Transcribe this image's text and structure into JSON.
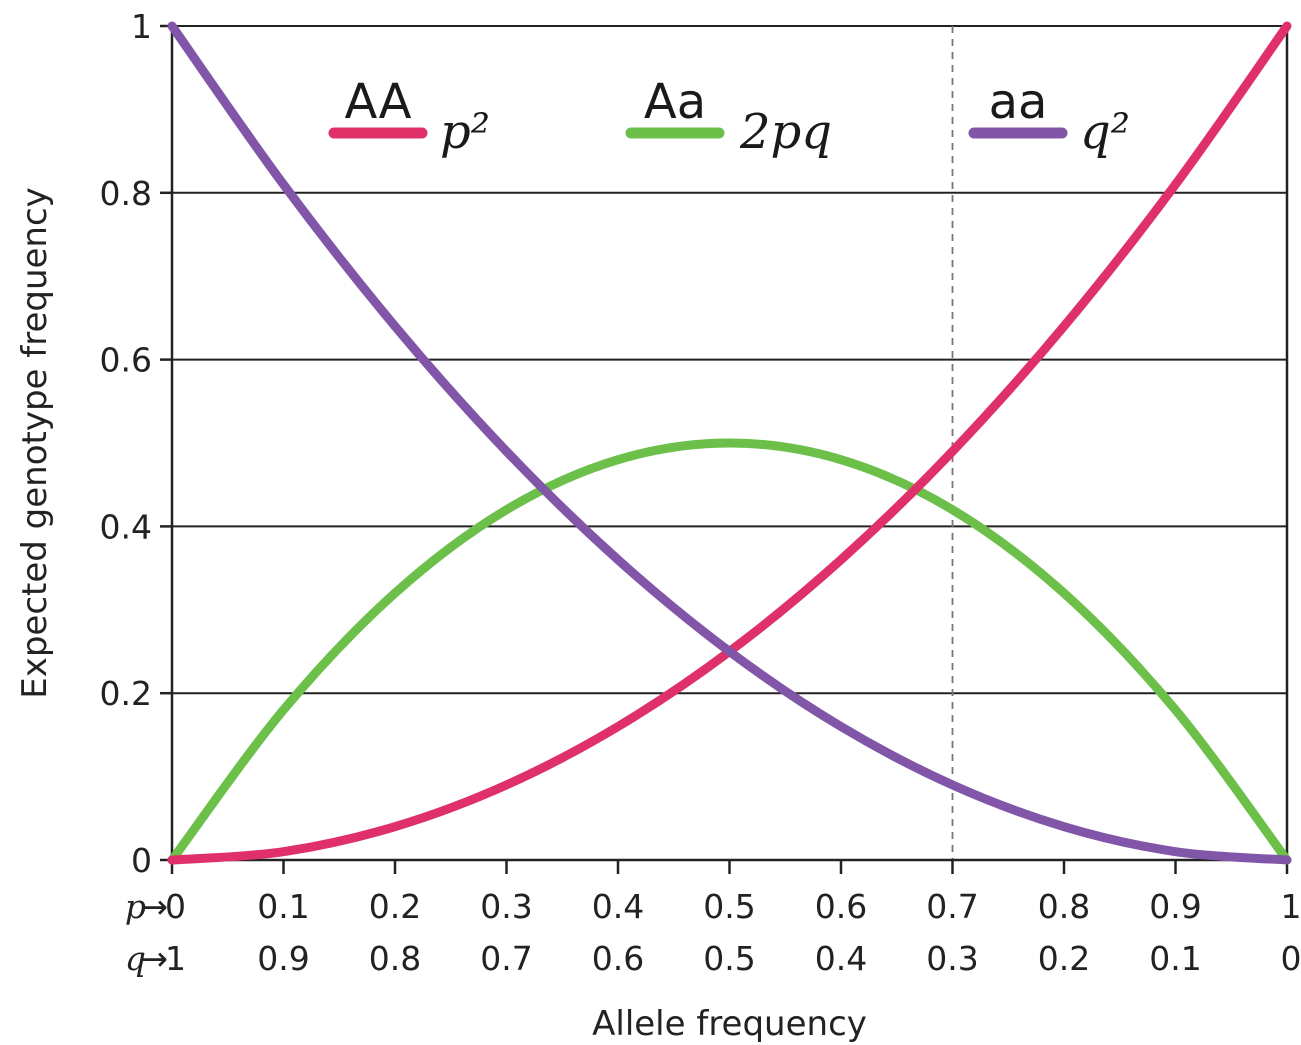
{
  "chart_data": {
    "type": "line",
    "xlabel": "Allele frequency",
    "ylabel": "Expected genotype frequency",
    "xlim": [
      0,
      1
    ],
    "ylim": [
      0,
      1
    ],
    "grid": "horizontal",
    "legend_position": "top",
    "x_axis_rows": [
      {
        "prefix": "p",
        "arrow": "→",
        "ticks": [
          "0",
          "0.1",
          "0.2",
          "0.3",
          "0.4",
          "0.5",
          "0.6",
          "0.7",
          "0.8",
          "0.9",
          "1"
        ]
      },
      {
        "prefix": "q",
        "arrow": "→",
        "ticks": [
          "1",
          "0.9",
          "0.8",
          "0.7",
          "0.6",
          "0.5",
          "0.4",
          "0.3",
          "0.2",
          "0.1",
          "0"
        ]
      }
    ],
    "x_tick_values": [
      0,
      0.1,
      0.2,
      0.3,
      0.4,
      0.5,
      0.6,
      0.7,
      0.8,
      0.9,
      1
    ],
    "y_ticks": [
      {
        "value": 0,
        "label": "0"
      },
      {
        "value": 0.2,
        "label": "0.2"
      },
      {
        "value": 0.4,
        "label": "0.4"
      },
      {
        "value": 0.6,
        "label": "0.6"
      },
      {
        "value": 0.8,
        "label": "0.8"
      },
      {
        "value": 1,
        "label": "1"
      }
    ],
    "reference_line": {
      "x": 0.7,
      "style": "dashed"
    },
    "series": [
      {
        "name": "AA",
        "formula": "p²",
        "color": "#e0306a",
        "x": [
          0,
          0.1,
          0.2,
          0.3,
          0.4,
          0.5,
          0.6,
          0.7,
          0.8,
          0.9,
          1
        ],
        "values": [
          0,
          0.01,
          0.04,
          0.09,
          0.16,
          0.25,
          0.36,
          0.49,
          0.64,
          0.81,
          1
        ]
      },
      {
        "name": "Aa",
        "formula": "2pq",
        "color": "#6cc04a",
        "x": [
          0,
          0.1,
          0.2,
          0.3,
          0.4,
          0.5,
          0.6,
          0.7,
          0.8,
          0.9,
          1
        ],
        "values": [
          0,
          0.18,
          0.32,
          0.42,
          0.48,
          0.5,
          0.48,
          0.42,
          0.32,
          0.18,
          0
        ]
      },
      {
        "name": "aa",
        "formula": "q²",
        "color": "#8156a8",
        "x": [
          0,
          0.1,
          0.2,
          0.3,
          0.4,
          0.5,
          0.6,
          0.7,
          0.8,
          0.9,
          1
        ],
        "values": [
          1,
          0.81,
          0.64,
          0.49,
          0.36,
          0.25,
          0.16,
          0.09,
          0.04,
          0.01,
          0
        ]
      }
    ]
  }
}
